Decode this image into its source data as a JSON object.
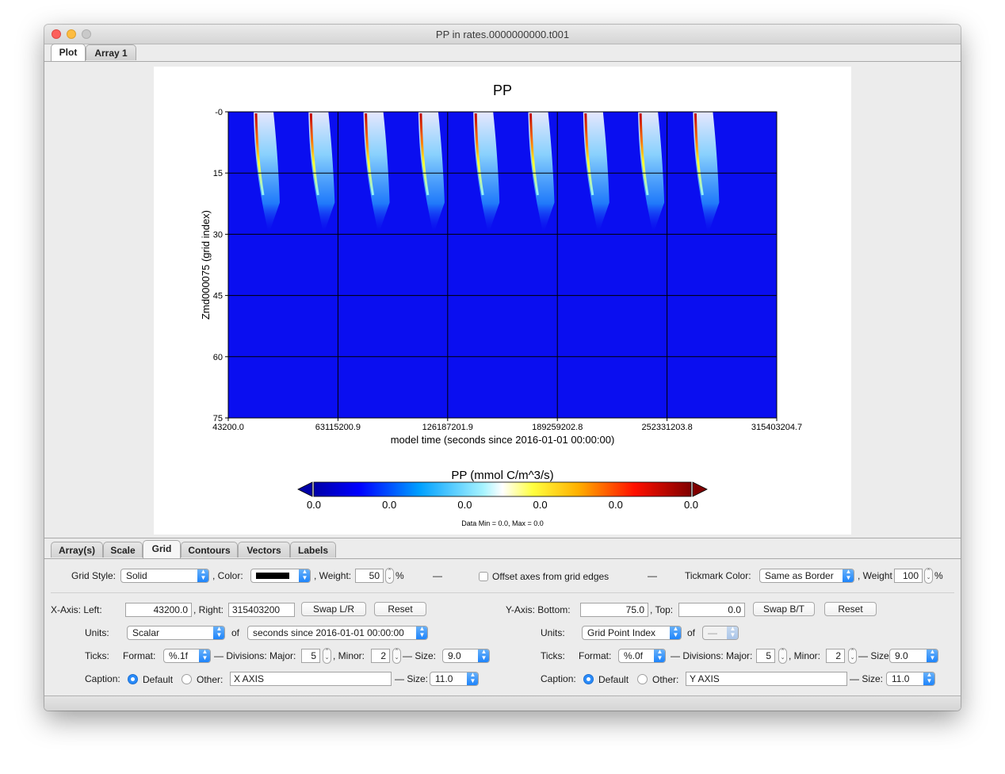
{
  "window": {
    "title": "PP in rates.0000000000.t001"
  },
  "top_tabs": [
    "Plot",
    "Array 1"
  ],
  "plot": {
    "colorbar_title": "PP (mmol C/m^3/s)",
    "colorbar_ticks": [
      "0.0",
      "0.0",
      "0.0",
      "0.0",
      "0.0",
      "0.0"
    ],
    "data_range": "Data Min = 0.0, Max = 0.0"
  },
  "chart_data": {
    "type": "heatmap",
    "title": "PP",
    "xlabel": "model time (seconds since 2016-01-01 00:00:00)",
    "ylabel": "Zmd000075 (grid index)",
    "x_ticks": [
      "43200.0",
      "63115200.9",
      "126187201.9",
      "189259202.8",
      "252331203.8",
      "315403204.7"
    ],
    "y_ticks": [
      "-0",
      "15",
      "30",
      "45",
      "60",
      "75"
    ],
    "xlim": [
      43200.0,
      315403204.7
    ],
    "ylim": [
      75,
      0
    ],
    "grid": true,
    "colormap": [
      "#0000ff",
      "#00c0ff",
      "#ffff00",
      "#ff0000",
      "#8b0000"
    ],
    "feature": "annual surface blooms",
    "cycles": 9,
    "max_depth_index": 30
  },
  "bottom_tabs": [
    "Array(s)",
    "Scale",
    "Grid",
    "Contours",
    "Vectors",
    "Labels"
  ],
  "grid_options": {
    "style_label": "Grid Style:",
    "style_value": "Solid",
    "color_label": ", Color:",
    "color_value": "#000000",
    "weight_label": ", Weight:",
    "weight_value": "50",
    "weight_unit": "%",
    "offset_label": "Offset axes from grid edges",
    "tickmark_color_label": "Tickmark Color:",
    "tickmark_color_value": "Same as Border",
    "tick_weight_label": ", Weight",
    "tick_weight_value": "100",
    "tick_weight_unit": "%",
    "sep": "—"
  },
  "x_axis": {
    "left_label": "X-Axis: Left:",
    "left_value": "43200.0",
    "right_label": ", Right:",
    "right_value": "315403200",
    "swap_label": "Swap L/R",
    "reset_label": "Reset",
    "units_label": "Units:",
    "units_value": "Scalar",
    "of_label": "of",
    "of_value": "seconds since 2016-01-01 00:00:00",
    "ticks_label": "Ticks:",
    "format_label": "Format:",
    "format_value": "%.1f",
    "divisions_label": "— Divisions: Major:",
    "major_value": "5",
    "minor_label": ", Minor:",
    "minor_value": "2",
    "size_label": "— Size:",
    "size_value": "9.0",
    "caption_label": "Caption:",
    "default_label": "Default",
    "other_label": "Other:",
    "caption_value": "X AXIS",
    "caption_size_value": "11.0"
  },
  "y_axis": {
    "bottom_label": "Y-Axis: Bottom:",
    "bottom_value": "75.0",
    "top_label": ", Top:",
    "top_value": "0.0",
    "swap_label": "Swap B/T",
    "reset_label": "Reset",
    "units_label": "Units:",
    "units_value": "Grid Point Index",
    "of_label": "of",
    "of_value": "—",
    "ticks_label": "Ticks:",
    "format_label": "Format:",
    "format_value": "%.0f",
    "divisions_label": "— Divisions: Major:",
    "major_value": "5",
    "minor_label": ", Minor:",
    "minor_value": "2",
    "size_label": "— Size:",
    "size_value": "9.0",
    "caption_label": "Caption:",
    "default_label": "Default",
    "other_label": "Other:",
    "caption_value": "Y AXIS",
    "caption_size_value": "11.0"
  }
}
